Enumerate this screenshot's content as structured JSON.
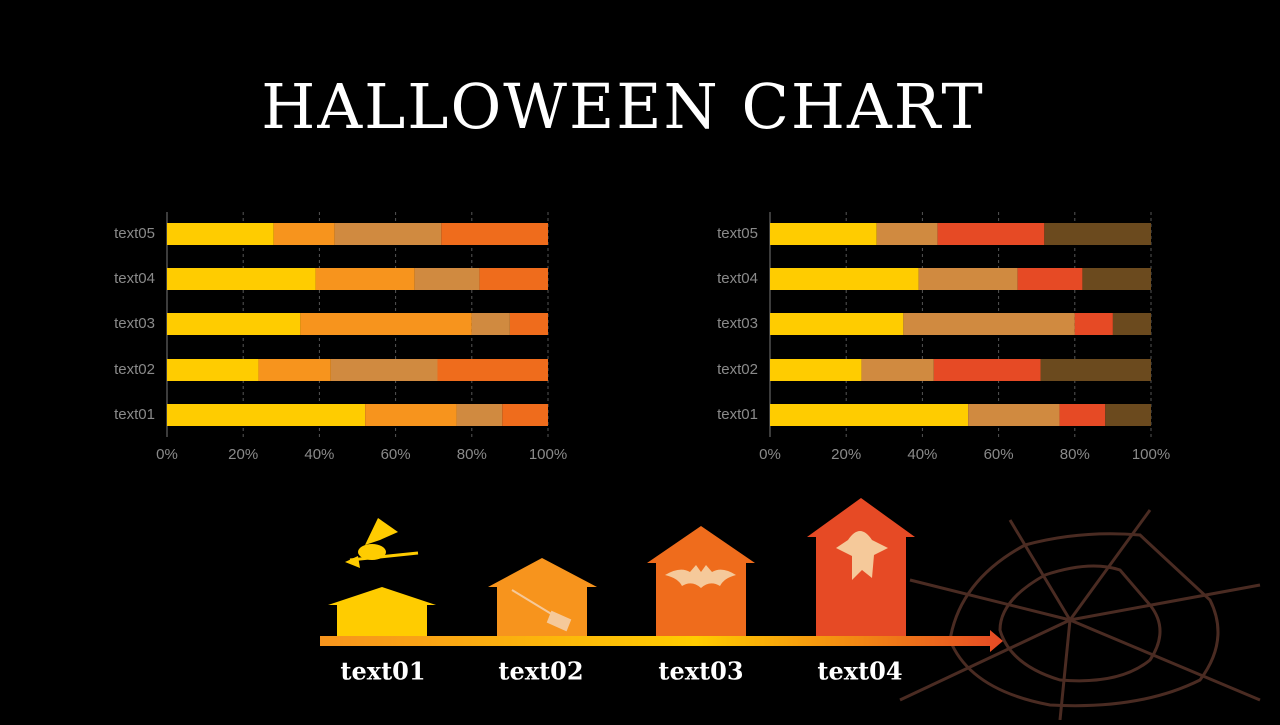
{
  "title": "HALLOWEEN CHART",
  "chart_data": [
    {
      "type": "stacked-bar-horizontal",
      "categories": [
        "text01",
        "text02",
        "text03",
        "text04",
        "text05"
      ],
      "series": [
        {
          "color": "#ffcc00",
          "values": [
            52,
            24,
            35,
            39,
            28
          ]
        },
        {
          "color": "#f7941d",
          "values": [
            24,
            19,
            45,
            26,
            16
          ]
        },
        {
          "color": "#d08a40",
          "values": [
            12,
            28,
            10,
            17,
            28
          ]
        },
        {
          "color": "#ef6c1c",
          "values": [
            12,
            29,
            10,
            18,
            28
          ]
        }
      ],
      "xlim": [
        0,
        100
      ],
      "xticks": [
        {
          "value": 0,
          "label": "0%"
        },
        {
          "value": 20,
          "label": "20%"
        },
        {
          "value": 40,
          "label": "40%"
        },
        {
          "value": 60,
          "label": "60%"
        },
        {
          "value": 80,
          "label": "80%"
        },
        {
          "value": 100,
          "label": "100%"
        }
      ],
      "grid": true
    },
    {
      "type": "stacked-bar-horizontal",
      "categories": [
        "text01",
        "text02",
        "text03",
        "text04",
        "text05"
      ],
      "series": [
        {
          "color": "#ffcc00",
          "values": [
            52,
            24,
            35,
            39,
            28
          ]
        },
        {
          "color": "#d08a40",
          "values": [
            24,
            19,
            45,
            26,
            16
          ]
        },
        {
          "color": "#e64a25",
          "values": [
            12,
            28,
            10,
            17,
            28
          ]
        },
        {
          "color": "#6b4a1e",
          "values": [
            12,
            29,
            10,
            18,
            28
          ]
        }
      ],
      "xlim": [
        0,
        100
      ],
      "xticks": [
        {
          "value": 0,
          "label": "0%"
        },
        {
          "value": 20,
          "label": "20%"
        },
        {
          "value": 40,
          "label": "40%"
        },
        {
          "value": 60,
          "label": "60%"
        },
        {
          "value": 80,
          "label": "80%"
        },
        {
          "value": 100,
          "label": "100%"
        }
      ],
      "grid": true
    }
  ],
  "timeline": {
    "labels": [
      "text01",
      "text02",
      "text03",
      "text04"
    ]
  }
}
